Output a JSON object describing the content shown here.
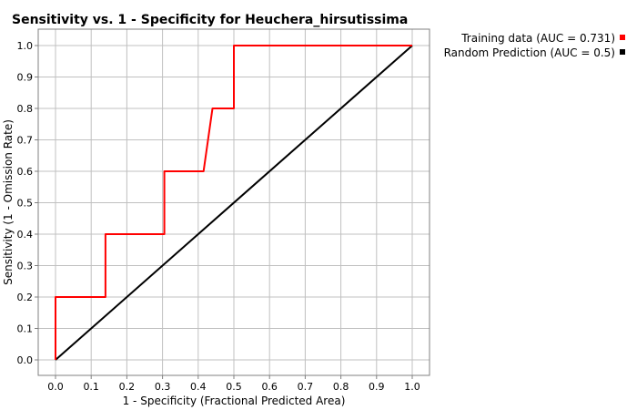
{
  "chart_data": {
    "type": "line",
    "title": "Sensitivity vs. 1 - Specificity for Heuchera_hirsutissima",
    "xlabel": "1 - Specificity  (Fractional Predicted Area)",
    "ylabel": "Sensitivity  (1 - Omission Rate)",
    "xlim": [
      0.0,
      1.0
    ],
    "ylim": [
      0.0,
      1.0
    ],
    "x_ticks": [
      "0.0",
      "0.1",
      "0.2",
      "0.3",
      "0.4",
      "0.5",
      "0.6",
      "0.7",
      "0.8",
      "0.9",
      "1.0"
    ],
    "y_ticks": [
      "0.0",
      "0.1",
      "0.2",
      "0.3",
      "0.4",
      "0.5",
      "0.6",
      "0.7",
      "0.8",
      "0.9",
      "1.0"
    ],
    "grid": true,
    "legend_position": "top-right",
    "series": [
      {
        "name": "Training data (AUC = 0.731)",
        "color": "#ff0000",
        "x": [
          0.0,
          0.0,
          0.14,
          0.14,
          0.305,
          0.305,
          0.415,
          0.44,
          0.5,
          0.5,
          1.0
        ],
        "y": [
          0.0,
          0.2,
          0.2,
          0.4,
          0.4,
          0.6,
          0.6,
          0.8,
          0.8,
          1.0,
          1.0
        ]
      },
      {
        "name": "Random Prediction (AUC = 0.5)",
        "color": "#000000",
        "x": [
          0.0,
          1.0
        ],
        "y": [
          0.0,
          1.0
        ]
      }
    ]
  }
}
